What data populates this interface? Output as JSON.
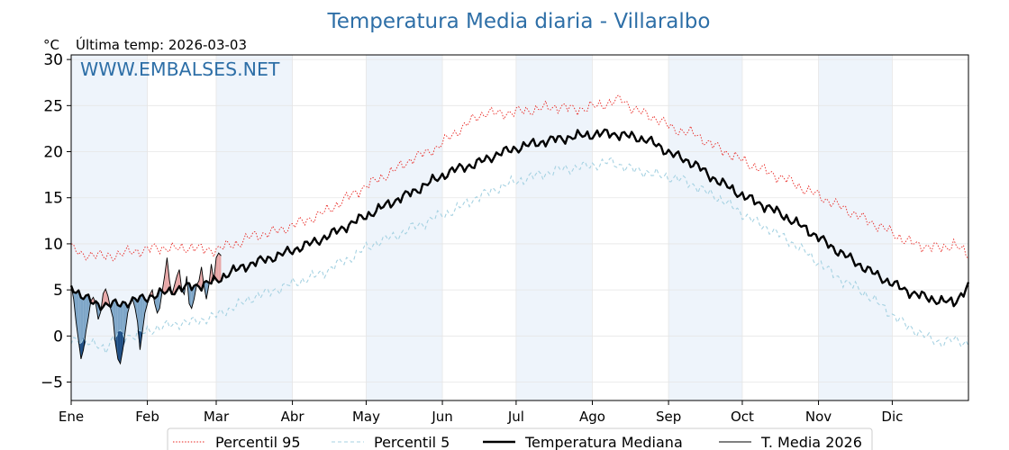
{
  "header": {
    "title": "Temperatura Media diaria - Villaralbo",
    "unit": "°C",
    "last_temp": "Última temp: 2026-03-03",
    "watermark": "WWW.EMBALSES.NET"
  },
  "chart_data": {
    "type": "line",
    "title": "Temperatura Media diaria - Villaralbo",
    "ylabel": "°C",
    "ylim": [
      -7,
      30.5
    ],
    "y_ticks": [
      -5,
      0,
      5,
      10,
      15,
      20,
      25,
      30
    ],
    "y_tick_labels": [
      "−5",
      "0",
      "5",
      "10",
      "15",
      "20",
      "25",
      "30"
    ],
    "x_unit": "day of year",
    "xlim": [
      1,
      366
    ],
    "months": [
      {
        "label": "Ene",
        "start_day": 1
      },
      {
        "label": "Feb",
        "start_day": 32
      },
      {
        "label": "Mar",
        "start_day": 60
      },
      {
        "label": "Abr",
        "start_day": 91
      },
      {
        "label": "May",
        "start_day": 121
      },
      {
        "label": "Jun",
        "start_day": 152
      },
      {
        "label": "Jul",
        "start_day": 182
      },
      {
        "label": "Ago",
        "start_day": 213
      },
      {
        "label": "Sep",
        "start_day": 244
      },
      {
        "label": "Oct",
        "start_day": 274
      },
      {
        "label": "Nov",
        "start_day": 305
      },
      {
        "label": "Dic",
        "start_day": 335
      }
    ],
    "shaded_months": [
      "Ene",
      "Mar",
      "May",
      "Jul",
      "Sep",
      "Nov"
    ],
    "grid": true,
    "legend_position": "bottom",
    "series": [
      {
        "name": "Percentil 95",
        "style": "dotted",
        "color": "#e8231e",
        "points": [
          [
            1,
            9.8
          ],
          [
            5,
            8.6
          ],
          [
            10,
            9.0
          ],
          [
            15,
            8.5
          ],
          [
            20,
            8.9
          ],
          [
            25,
            9.1
          ],
          [
            30,
            9.3
          ],
          [
            35,
            9.5
          ],
          [
            40,
            9.6
          ],
          [
            45,
            9.4
          ],
          [
            50,
            9.7
          ],
          [
            55,
            9.3
          ],
          [
            60,
            9.4
          ],
          [
            65,
            9.8
          ],
          [
            70,
            10.2
          ],
          [
            75,
            10.9
          ],
          [
            80,
            11.1
          ],
          [
            85,
            11.4
          ],
          [
            90,
            11.9
          ],
          [
            95,
            12.4
          ],
          [
            100,
            12.9
          ],
          [
            105,
            13.6
          ],
          [
            110,
            14.4
          ],
          [
            115,
            15.3
          ],
          [
            120,
            16.1
          ],
          [
            125,
            16.9
          ],
          [
            130,
            17.6
          ],
          [
            135,
            18.4
          ],
          [
            140,
            19.3
          ],
          [
            145,
            19.8
          ],
          [
            150,
            20.5
          ],
          [
            155,
            21.6
          ],
          [
            160,
            22.6
          ],
          [
            165,
            23.6
          ],
          [
            170,
            24.3
          ],
          [
            175,
            24.1
          ],
          [
            180,
            24.3
          ],
          [
            185,
            24.4
          ],
          [
            190,
            24.6
          ],
          [
            195,
            24.8
          ],
          [
            200,
            24.9
          ],
          [
            205,
            24.6
          ],
          [
            210,
            24.7
          ],
          [
            215,
            25.0
          ],
          [
            220,
            25.3
          ],
          [
            225,
            25.7
          ],
          [
            230,
            24.6
          ],
          [
            235,
            24.0
          ],
          [
            240,
            23.5
          ],
          [
            245,
            22.6
          ],
          [
            250,
            22.2
          ],
          [
            255,
            21.9
          ],
          [
            260,
            21.0
          ],
          [
            265,
            20.3
          ],
          [
            270,
            19.6
          ],
          [
            275,
            18.9
          ],
          [
            280,
            18.3
          ],
          [
            285,
            17.7
          ],
          [
            290,
            17.2
          ],
          [
            295,
            16.6
          ],
          [
            300,
            15.8
          ],
          [
            305,
            15.3
          ],
          [
            310,
            14.5
          ],
          [
            315,
            13.9
          ],
          [
            320,
            13.2
          ],
          [
            325,
            12.5
          ],
          [
            330,
            11.9
          ],
          [
            335,
            11.2
          ],
          [
            340,
            10.4
          ],
          [
            345,
            9.9
          ],
          [
            350,
            9.7
          ],
          [
            355,
            9.5
          ],
          [
            360,
            10.0
          ],
          [
            366,
            8.7
          ]
        ]
      },
      {
        "name": "Percentil 5",
        "style": "dashed",
        "color": "#a6d2e2",
        "points": [
          [
            1,
            -0.6
          ],
          [
            5,
            -0.3
          ],
          [
            10,
            -1.0
          ],
          [
            15,
            -1.3
          ],
          [
            20,
            0.2
          ],
          [
            25,
            0.0
          ],
          [
            30,
            0.3
          ],
          [
            35,
            0.8
          ],
          [
            40,
            1.1
          ],
          [
            45,
            1.4
          ],
          [
            50,
            1.5
          ],
          [
            55,
            1.8
          ],
          [
            60,
            2.2
          ],
          [
            65,
            2.9
          ],
          [
            70,
            3.5
          ],
          [
            75,
            4.2
          ],
          [
            80,
            4.6
          ],
          [
            85,
            5.1
          ],
          [
            90,
            5.6
          ],
          [
            95,
            6.0
          ],
          [
            100,
            6.5
          ],
          [
            105,
            7.1
          ],
          [
            110,
            7.9
          ],
          [
            115,
            8.5
          ],
          [
            120,
            9.4
          ],
          [
            125,
            10.1
          ],
          [
            130,
            10.6
          ],
          [
            135,
            11.1
          ],
          [
            140,
            11.8
          ],
          [
            145,
            12.3
          ],
          [
            150,
            13.0
          ],
          [
            155,
            13.4
          ],
          [
            160,
            14.1
          ],
          [
            165,
            14.9
          ],
          [
            170,
            15.5
          ],
          [
            175,
            16.1
          ],
          [
            180,
            16.6
          ],
          [
            185,
            17.0
          ],
          [
            190,
            17.4
          ],
          [
            195,
            17.7
          ],
          [
            200,
            18.1
          ],
          [
            205,
            18.2
          ],
          [
            210,
            18.4
          ],
          [
            215,
            18.6
          ],
          [
            220,
            18.9
          ],
          [
            225,
            18.5
          ],
          [
            230,
            18.0
          ],
          [
            235,
            17.8
          ],
          [
            240,
            17.4
          ],
          [
            245,
            17.2
          ],
          [
            250,
            16.9
          ],
          [
            255,
            16.3
          ],
          [
            260,
            15.5
          ],
          [
            265,
            14.9
          ],
          [
            270,
            14.0
          ],
          [
            275,
            13.1
          ],
          [
            280,
            12.3
          ],
          [
            285,
            11.6
          ],
          [
            290,
            10.8
          ],
          [
            295,
            10.0
          ],
          [
            300,
            9.0
          ],
          [
            305,
            8.0
          ],
          [
            310,
            6.9
          ],
          [
            315,
            6.0
          ],
          [
            320,
            5.3
          ],
          [
            325,
            4.4
          ],
          [
            330,
            3.4
          ],
          [
            335,
            2.3
          ],
          [
            340,
            1.3
          ],
          [
            345,
            0.5
          ],
          [
            350,
            -0.3
          ],
          [
            355,
            -0.7
          ],
          [
            360,
            -0.4
          ],
          [
            366,
            -0.8
          ]
        ]
      },
      {
        "name": "Temperatura Mediana",
        "style": "solid-thick",
        "color": "#000000",
        "points": [
          [
            1,
            5.5
          ],
          [
            5,
            4.4
          ],
          [
            10,
            3.6
          ],
          [
            15,
            3.3
          ],
          [
            20,
            3.5
          ],
          [
            25,
            3.7
          ],
          [
            30,
            4.1
          ],
          [
            35,
            4.4
          ],
          [
            40,
            4.8
          ],
          [
            45,
            5.1
          ],
          [
            50,
            5.4
          ],
          [
            55,
            5.6
          ],
          [
            60,
            6.0
          ],
          [
            65,
            6.8
          ],
          [
            70,
            7.4
          ],
          [
            75,
            7.9
          ],
          [
            80,
            8.3
          ],
          [
            85,
            8.7
          ],
          [
            90,
            9.2
          ],
          [
            95,
            9.7
          ],
          [
            100,
            10.2
          ],
          [
            105,
            10.8
          ],
          [
            110,
            11.5
          ],
          [
            115,
            12.2
          ],
          [
            120,
            12.9
          ],
          [
            125,
            13.6
          ],
          [
            130,
            14.3
          ],
          [
            135,
            15.0
          ],
          [
            140,
            15.6
          ],
          [
            145,
            16.4
          ],
          [
            150,
            17.1
          ],
          [
            155,
            17.8
          ],
          [
            160,
            18.3
          ],
          [
            165,
            18.6
          ],
          [
            170,
            19.2
          ],
          [
            175,
            19.8
          ],
          [
            180,
            20.2
          ],
          [
            185,
            20.6
          ],
          [
            190,
            20.9
          ],
          [
            195,
            21.2
          ],
          [
            200,
            21.4
          ],
          [
            205,
            21.6
          ],
          [
            210,
            21.8
          ],
          [
            215,
            21.9
          ],
          [
            220,
            22.0
          ],
          [
            225,
            21.8
          ],
          [
            230,
            21.6
          ],
          [
            235,
            21.3
          ],
          [
            240,
            20.6
          ],
          [
            245,
            19.8
          ],
          [
            250,
            19.2
          ],
          [
            255,
            18.6
          ],
          [
            260,
            17.5
          ],
          [
            265,
            16.7
          ],
          [
            270,
            15.9
          ],
          [
            275,
            15.1
          ],
          [
            280,
            14.5
          ],
          [
            285,
            13.9
          ],
          [
            290,
            13.2
          ],
          [
            295,
            12.4
          ],
          [
            300,
            11.6
          ],
          [
            305,
            10.7
          ],
          [
            310,
            9.7
          ],
          [
            315,
            8.9
          ],
          [
            320,
            8.0
          ],
          [
            325,
            7.2
          ],
          [
            330,
            6.4
          ],
          [
            335,
            5.7
          ],
          [
            340,
            5.0
          ],
          [
            345,
            4.5
          ],
          [
            350,
            4.1
          ],
          [
            355,
            3.8
          ],
          [
            360,
            3.6
          ],
          [
            366,
            5.4
          ]
        ]
      },
      {
        "name": "T. Media 2026",
        "style": "solid-thin",
        "color": "#000000",
        "points": [
          [
            1,
            5.5
          ],
          [
            2,
            4.0
          ],
          [
            3,
            1.5
          ],
          [
            4,
            -0.5
          ],
          [
            5,
            -2.5
          ],
          [
            6,
            -1.5
          ],
          [
            7,
            0.5
          ],
          [
            8,
            2.0
          ],
          [
            9,
            3.8
          ],
          [
            10,
            4.2
          ],
          [
            11,
            3.5
          ],
          [
            12,
            1.8
          ],
          [
            13,
            2.6
          ],
          [
            14,
            4.6
          ],
          [
            15,
            5.1
          ],
          [
            16,
            4.3
          ],
          [
            17,
            3.0
          ],
          [
            18,
            2.0
          ],
          [
            19,
            -0.8
          ],
          [
            20,
            -2.5
          ],
          [
            21,
            -3.0
          ],
          [
            22,
            -1.5
          ],
          [
            23,
            0.5
          ],
          [
            24,
            2.5
          ],
          [
            25,
            3.5
          ],
          [
            26,
            4.0
          ],
          [
            27,
            3.0
          ],
          [
            28,
            1.5
          ],
          [
            29,
            -1.5
          ],
          [
            30,
            0.5
          ],
          [
            31,
            2.5
          ],
          [
            32,
            3.5
          ],
          [
            33,
            4.5
          ],
          [
            34,
            5.0
          ],
          [
            35,
            3.5
          ],
          [
            36,
            2.5
          ],
          [
            37,
            3.0
          ],
          [
            38,
            4.8
          ],
          [
            39,
            6.5
          ],
          [
            40,
            8.5
          ],
          [
            41,
            6.0
          ],
          [
            42,
            4.5
          ],
          [
            43,
            5.5
          ],
          [
            44,
            6.5
          ],
          [
            45,
            7.2
          ],
          [
            46,
            5.0
          ],
          [
            47,
            4.5
          ],
          [
            48,
            6.5
          ],
          [
            49,
            3.5
          ],
          [
            50,
            3.0
          ],
          [
            51,
            4.0
          ],
          [
            52,
            5.5
          ],
          [
            53,
            6.0
          ],
          [
            54,
            7.5
          ],
          [
            55,
            5.5
          ],
          [
            56,
            4.0
          ],
          [
            57,
            5.5
          ],
          [
            58,
            7.8
          ],
          [
            59,
            6.0
          ],
          [
            60,
            8.5
          ],
          [
            61,
            9.0
          ],
          [
            62,
            8.7
          ]
        ]
      }
    ],
    "legend": [
      {
        "label": "Percentil 95",
        "style": "dotted",
        "color": "#e8231e"
      },
      {
        "label": "Percentil 5",
        "style": "dashed",
        "color": "#a6d2e2"
      },
      {
        "label": "Temperatura Mediana",
        "style": "solid-thick",
        "color": "#000000"
      },
      {
        "label": "T. Media 2026",
        "style": "solid-thin",
        "color": "#000000"
      }
    ],
    "fills": {
      "above_median": "#e8a8a8",
      "below_median": "#7ea6c8",
      "below_p5": "#1f4f86"
    }
  },
  "colors": {
    "title": "#2e6fa7",
    "watermark": "#2e6fa7",
    "band": "#eef4fb",
    "grid": "#e6e6e6"
  }
}
